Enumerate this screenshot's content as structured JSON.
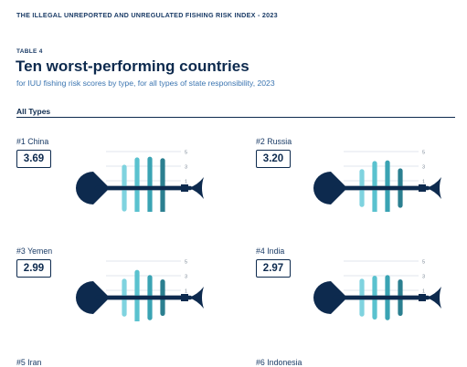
{
  "header": {
    "title": "THE ILLEGAL UNREPORTED AND UNREGULATED FISHING RISK INDEX - 2023"
  },
  "table": {
    "label": "TABLE 4",
    "title": "Ten worst-performing countries",
    "subtitle": "for IUU fishing risk scores by type, for all types of state responsibility, 2023",
    "section": "All Types"
  },
  "scale": {
    "ticks": [
      "5",
      "3",
      "1"
    ]
  },
  "colors": {
    "navy": "#0d2a4e",
    "bones": [
      "#7fd3df",
      "#5ac2cf",
      "#3aa3b3",
      "#2b7f90"
    ],
    "gridline": "#d6dee6"
  },
  "countries": [
    {
      "label": "#1 China",
      "score": "3.69",
      "bones": [
        3.2,
        4.2,
        4.3,
        4.1
      ]
    },
    {
      "label": "#2 Russia",
      "score": "3.20",
      "bones": [
        2.6,
        3.7,
        3.8,
        2.7
      ]
    },
    {
      "label": "#3 Yemen",
      "score": "2.99",
      "bones": [
        2.6,
        3.8,
        3.1,
        2.5
      ]
    },
    {
      "label": "#4 India",
      "score": "2.97",
      "bones": [
        2.6,
        3.0,
        3.1,
        2.5
      ]
    },
    {
      "label": "#5 Iran",
      "score": "",
      "bones": []
    },
    {
      "label": "#6 Indonesia",
      "score": "",
      "bones": []
    }
  ]
}
